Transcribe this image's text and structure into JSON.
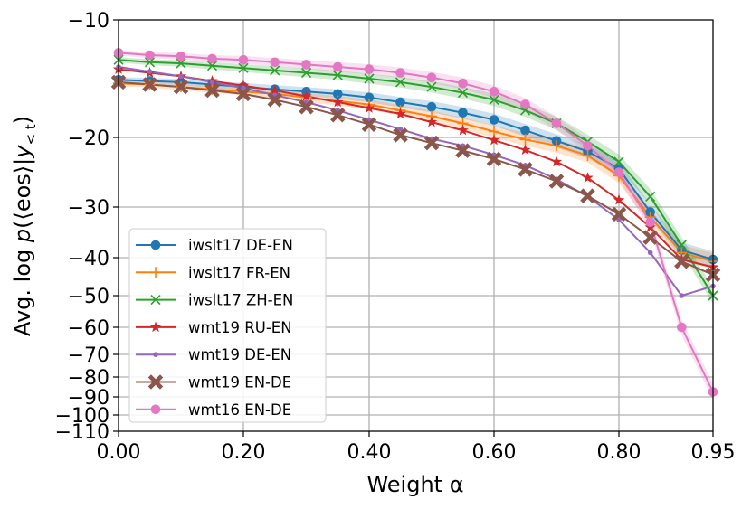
{
  "chart_data": {
    "type": "line",
    "title": "",
    "xlabel": "Weight α",
    "ylabel": "Avg. log p(⟨eos⟩|y<t)",
    "ylabel_parts": {
      "prefix": "Avg. log ",
      "p": "p",
      "mid": "(⟨eos⟩|",
      "y": "y",
      "sub": "< t",
      "close": ")"
    },
    "x_scale": "nonlinear (tick labels 0.00–0.95)",
    "y_scale": "nonlinear symlog-like",
    "xlim": [
      0.0,
      0.95
    ],
    "ylim": [
      -110,
      -10
    ],
    "grid": true,
    "legend_position": "lower-left",
    "x_ticks": [
      {
        "value": 0.0,
        "label": "0.00"
      },
      {
        "value": 0.2,
        "label": "0.20"
      },
      {
        "value": 0.4,
        "label": "0.40"
      },
      {
        "value": 0.6,
        "label": "0.60"
      },
      {
        "value": 0.8,
        "label": "0.80"
      },
      {
        "value": 0.95,
        "label": "0.95"
      }
    ],
    "y_ticks": [
      {
        "value": -10,
        "label": "−10"
      },
      {
        "value": -20,
        "label": "−20"
      },
      {
        "value": -30,
        "label": "−30"
      },
      {
        "value": -40,
        "label": "−40"
      },
      {
        "value": -50,
        "label": "−50"
      },
      {
        "value": -60,
        "label": "−60"
      },
      {
        "value": -70,
        "label": "−70"
      },
      {
        "value": -80,
        "label": "−80"
      },
      {
        "value": -90,
        "label": "−90"
      },
      {
        "value": -100,
        "label": "−100"
      },
      {
        "value": -110,
        "label": "−110"
      }
    ],
    "x": [
      0.0,
      0.05,
      0.1,
      0.15,
      0.2,
      0.25,
      0.3,
      0.35,
      0.4,
      0.45,
      0.5,
      0.55,
      0.6,
      0.65,
      0.7,
      0.75,
      0.8,
      0.85,
      0.9,
      0.95
    ],
    "series": [
      {
        "name": "iwslt17 DE-EN",
        "color": "#1f77b4",
        "marker": "circle",
        "band": true,
        "values": [
          -15.1,
          -15.2,
          -15.3,
          -15.5,
          -15.7,
          -15.9,
          -16.1,
          -16.3,
          -16.6,
          -17.0,
          -17.4,
          -17.9,
          -18.5,
          -19.4,
          -20.5,
          -22.0,
          -24.5,
          -31.0,
          -38.5,
          -40.5
        ]
      },
      {
        "name": "iwslt17 FR-EN",
        "color": "#ff7f0e",
        "marker": "plus",
        "band": true,
        "values": [
          -15.4,
          -15.5,
          -15.7,
          -15.9,
          -16.1,
          -16.3,
          -16.6,
          -16.9,
          -17.2,
          -17.7,
          -18.2,
          -18.8,
          -19.5,
          -20.3,
          -21.2,
          -22.6,
          -25.5,
          -32.0,
          -39.0,
          -41.0
        ]
      },
      {
        "name": "iwslt17 ZH-EN",
        "color": "#2ca02c",
        "marker": "x",
        "band": true,
        "values": [
          -13.4,
          -13.6,
          -13.7,
          -13.9,
          -14.1,
          -14.3,
          -14.5,
          -14.7,
          -15.0,
          -15.3,
          -15.7,
          -16.2,
          -16.8,
          -17.7,
          -18.8,
          -20.6,
          -23.5,
          -28.5,
          -37.5,
          -50.0
        ]
      },
      {
        "name": "wmt19 RU-EN",
        "color": "#d62728",
        "marker": "star",
        "band": false,
        "values": [
          -14.2,
          -14.5,
          -14.8,
          -15.2,
          -15.6,
          -16.0,
          -16.5,
          -17.0,
          -17.5,
          -18.0,
          -18.7,
          -19.4,
          -20.4,
          -21.8,
          -23.5,
          -25.8,
          -29.0,
          -34.0,
          -40.5,
          -42.5
        ]
      },
      {
        "name": "wmt19 DE-EN",
        "color": "#9467bd",
        "marker": "dot",
        "band": false,
        "values": [
          -14.0,
          -14.4,
          -14.8,
          -15.3,
          -15.8,
          -16.4,
          -17.0,
          -17.7,
          -18.5,
          -19.3,
          -20.2,
          -21.2,
          -22.5,
          -24.0,
          -26.0,
          -28.5,
          -32.5,
          -39.0,
          -50.0,
          -47.5
        ]
      },
      {
        "name": "wmt19 EN-DE",
        "color": "#8c564b",
        "marker": "xfilled",
        "band": false,
        "values": [
          -15.3,
          -15.5,
          -15.7,
          -16.0,
          -16.3,
          -16.8,
          -17.4,
          -18.1,
          -18.9,
          -19.8,
          -20.8,
          -21.9,
          -23.1,
          -24.6,
          -26.3,
          -28.4,
          -31.4,
          -36.0,
          -41.0,
          -44.5
        ]
      },
      {
        "name": "wmt16 EN-DE",
        "color": "#e377c2",
        "marker": "circle",
        "band": true,
        "values": [
          -12.8,
          -13.0,
          -13.1,
          -13.3,
          -13.4,
          -13.6,
          -13.8,
          -14.0,
          -14.2,
          -14.5,
          -14.9,
          -15.4,
          -16.1,
          -17.2,
          -18.8,
          -21.2,
          -25.0,
          -33.0,
          -60.0,
          -87.5
        ]
      }
    ]
  }
}
